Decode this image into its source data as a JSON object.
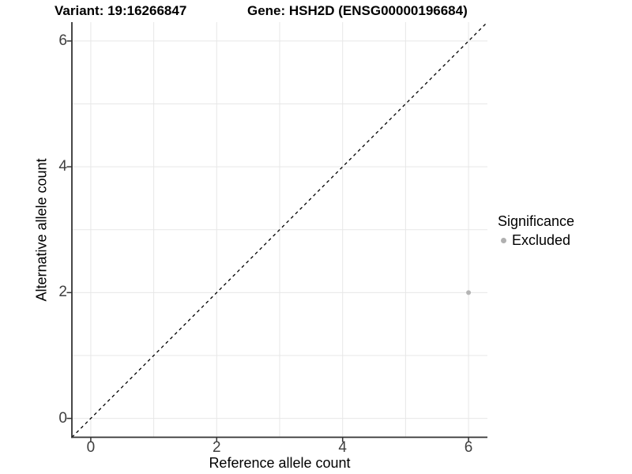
{
  "chart_data": {
    "type": "scatter",
    "title_left": "Variant: 19:16266847",
    "title_right": "Gene: HSH2D (ENSG00000196684)",
    "xlabel": "Reference allele count",
    "ylabel": "Alternative allele count",
    "xlim": [
      -0.3,
      6.3
    ],
    "ylim": [
      -0.3,
      6.3
    ],
    "x_ticks": [
      0,
      2,
      4,
      6
    ],
    "y_ticks": [
      0,
      2,
      4,
      6
    ],
    "gridlines": [
      0,
      1,
      2,
      3,
      4,
      5,
      6
    ],
    "grid_on": true,
    "series": [
      {
        "name": "Excluded",
        "color": "#b5b5b5",
        "points": [
          [
            6,
            2
          ]
        ]
      }
    ],
    "reference_line": {
      "kind": "identity",
      "style": "dashed",
      "color": "#000000"
    },
    "legend": {
      "title": "Significance",
      "position": "right",
      "items": [
        {
          "label": "Excluded",
          "color": "#b0b0b0"
        }
      ]
    }
  },
  "colors": {
    "axis_line": "#333333",
    "tick_text": "#404040",
    "gridline": "#e7e7e7",
    "background": "#ffffff"
  }
}
